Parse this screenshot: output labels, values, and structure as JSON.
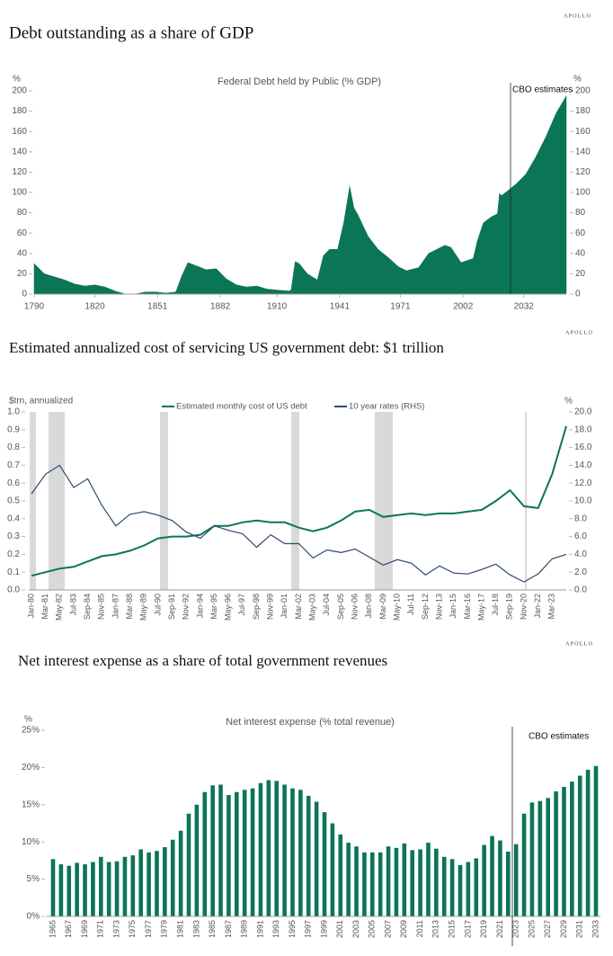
{
  "chart_data": [
    {
      "type": "area",
      "source_logo": "APOLLO",
      "title": "Debt outstanding as a share of GDP",
      "subtitle": "Federal Debt held by Public (% GDP)",
      "y_label": "%",
      "y2_label": "%",
      "annotation": "CBO estimates",
      "color": "#0b7557",
      "x": [
        1790,
        1795,
        1800,
        1805,
        1810,
        1815,
        1820,
        1825,
        1830,
        1835,
        1840,
        1845,
        1850,
        1855,
        1860,
        1863,
        1866,
        1870,
        1875,
        1880,
        1885,
        1890,
        1895,
        1900,
        1905,
        1910,
        1916,
        1917,
        1919,
        1921,
        1925,
        1930,
        1933,
        1936,
        1940,
        1943,
        1946,
        1948,
        1950,
        1955,
        1960,
        1965,
        1970,
        1974,
        1980,
        1985,
        1993,
        1996,
        2001,
        2007,
        2009,
        2012,
        2016,
        2019,
        2020,
        2021,
        2023,
        2028,
        2033,
        2038,
        2043,
        2048,
        2053
      ],
      "values": [
        30,
        20,
        17,
        14,
        10,
        8,
        9,
        7,
        3,
        0,
        0,
        2,
        2,
        1,
        2,
        18,
        31,
        28,
        24,
        25,
        15,
        9,
        7,
        8,
        5,
        4,
        3,
        4,
        32,
        30,
        20,
        14,
        38,
        44,
        44,
        70,
        106,
        85,
        78,
        57,
        44,
        36,
        27,
        23,
        26,
        40,
        48,
        46,
        31,
        35,
        52,
        70,
        76,
        79,
        99,
        97,
        100,
        108,
        118,
        135,
        155,
        178,
        195
      ],
      "xlim": [
        1790,
        2053
      ],
      "xticks": [
        1790,
        1820,
        1851,
        1882,
        1910,
        1941,
        1971,
        2002,
        2032
      ],
      "ylim": [
        0,
        200
      ],
      "yticks": [
        0,
        20,
        40,
        60,
        80,
        100,
        120,
        140,
        160,
        180,
        200
      ],
      "y2lim": [
        0,
        200
      ],
      "y2ticks": [
        0,
        20,
        40,
        60,
        80,
        100,
        120,
        140,
        160,
        180,
        200
      ]
    },
    {
      "type": "line",
      "source_logo": "APOLLO",
      "title": "Estimated annualized cost of servicing US government debt: $1 trillion",
      "y_label": "$trn, annualized",
      "y2_label": "%",
      "categories": [
        "Jan-80",
        "Mar-81",
        "May-82",
        "Jul-83",
        "Sep-84",
        "Nov-85",
        "Jan-87",
        "Mar-88",
        "May-89",
        "Jul-90",
        "Sep-91",
        "Nov-92",
        "Jan-94",
        "Mar-95",
        "May-96",
        "Jul-97",
        "Sep-98",
        "Nov-99",
        "Jan-01",
        "Mar-02",
        "May-03",
        "Jul-04",
        "Sep-05",
        "Nov-06",
        "Jan-08",
        "Mar-09",
        "May-10",
        "Jul-11",
        "Sep-12",
        "Nov-13",
        "Jan-15",
        "Mar-16",
        "May-17",
        "Jul-18",
        "Sep-19",
        "Nov-20",
        "Jan-22",
        "Mar-23",
        null
      ],
      "series": [
        {
          "name": "Estimated monthly cost of US debt",
          "color": "#0b7557",
          "values": [
            0.08,
            0.1,
            0.12,
            0.13,
            0.16,
            0.19,
            0.2,
            0.22,
            0.25,
            0.29,
            0.3,
            0.3,
            0.31,
            0.36,
            0.36,
            0.38,
            0.39,
            0.38,
            0.38,
            0.35,
            0.33,
            0.35,
            0.39,
            0.44,
            0.45,
            0.41,
            0.42,
            0.43,
            0.42,
            0.43,
            0.43,
            0.44,
            0.45,
            0.5,
            0.56,
            0.47,
            0.46,
            0.65,
            0.92
          ]
        },
        {
          "name": "10 year rates (RHS)",
          "color": "#2e4a6b",
          "axis": "y2",
          "values": [
            10.8,
            13.0,
            14.0,
            11.5,
            12.5,
            9.5,
            7.2,
            8.5,
            8.8,
            8.4,
            7.8,
            6.5,
            5.8,
            7.2,
            6.7,
            6.3,
            4.8,
            6.2,
            5.2,
            5.2,
            3.6,
            4.5,
            4.2,
            4.6,
            3.7,
            2.8,
            3.4,
            3.0,
            1.7,
            2.7,
            1.9,
            1.8,
            2.3,
            2.9,
            1.7,
            0.9,
            1.8,
            3.5,
            4.0
          ]
        }
      ],
      "ylim": [
        0,
        1
      ],
      "yticks": [
        {
          "value": 0,
          "label": "0.0"
        },
        0.1,
        0.2,
        0.3,
        0.4,
        0.5,
        0.6,
        0.7,
        0.8,
        0.9,
        {
          "value": 1,
          "label": "1.0"
        }
      ],
      "y2lim": [
        0,
        20
      ],
      "y2ticks": [
        {
          "value": 0,
          "label": "0.0"
        },
        {
          "value": 2,
          "label": "2.0"
        },
        {
          "value": 4,
          "label": "4.0"
        },
        {
          "value": 6,
          "label": "6.0"
        },
        {
          "value": 8,
          "label": "8.0"
        },
        {
          "value": 10,
          "label": "10.0"
        },
        {
          "value": 12,
          "label": "12.0"
        },
        {
          "value": 14,
          "label": "14.0"
        },
        {
          "value": 16,
          "label": "16.0"
        },
        {
          "value": 18,
          "label": "18.0"
        },
        {
          "value": 20,
          "label": "20.0"
        }
      ]
    },
    {
      "type": "bar",
      "source_logo": "APOLLO",
      "title": "Net interest expense as a share of total government revenues",
      "subtitle": "Net interest expense (% total revenue)",
      "y_label": "%",
      "annotation": "CBO estimates",
      "color": "#0b7557",
      "categories": [
        "1965",
        null,
        "1967",
        null,
        "1969",
        null,
        "1971",
        null,
        "1973",
        null,
        "1975",
        null,
        "1977",
        null,
        "1979",
        null,
        "1981",
        null,
        "1983",
        null,
        "1985",
        null,
        "1987",
        null,
        "1989",
        null,
        "1991",
        null,
        "1993",
        null,
        "1995",
        null,
        "1997",
        null,
        "1999",
        null,
        "2001",
        null,
        "2003",
        null,
        "2005",
        null,
        "2007",
        null,
        "2009",
        null,
        "2011",
        null,
        "2013",
        null,
        "2015",
        null,
        "2017",
        null,
        "2019",
        null,
        "2021",
        null,
        "2023",
        null,
        "2025",
        null,
        "2027",
        null,
        "2029",
        null,
        "2031",
        null,
        "2033"
      ],
      "values": [
        7.7,
        7.0,
        6.8,
        7.2,
        7.0,
        7.3,
        8.0,
        7.3,
        7.4,
        8.0,
        8.2,
        9.0,
        8.6,
        8.8,
        9.3,
        10.3,
        11.5,
        13.8,
        15.0,
        16.7,
        17.6,
        17.7,
        16.3,
        16.7,
        17.0,
        17.2,
        17.9,
        18.3,
        18.2,
        17.7,
        17.2,
        17.0,
        16.2,
        15.4,
        14.0,
        12.5,
        11.0,
        9.9,
        9.4,
        8.6,
        8.6,
        8.6,
        9.4,
        9.2,
        9.8,
        8.9,
        9.0,
        9.9,
        9.1,
        8.0,
        7.7,
        6.9,
        7.3,
        7.8,
        9.6,
        10.8,
        10.2,
        8.7,
        9.7,
        13.8,
        15.3,
        15.5,
        15.9,
        16.8,
        17.4,
        18.1,
        18.9,
        19.7,
        20.2
      ],
      "ylim": [
        0,
        25
      ],
      "yticks": [
        {
          "value": 0,
          "label": "0%"
        },
        {
          "value": 5,
          "label": "5%"
        },
        {
          "value": 10,
          "label": "10%"
        },
        {
          "value": 15,
          "label": "15%"
        },
        {
          "value": 20,
          "label": "20%"
        },
        {
          "value": 25,
          "label": "25%"
        }
      ]
    }
  ]
}
